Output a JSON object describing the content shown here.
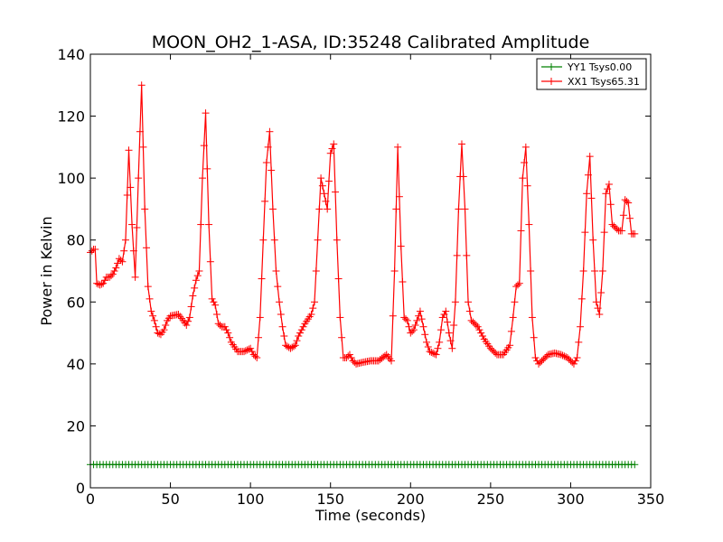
{
  "chart_data": {
    "type": "line",
    "title": "MOON_OH2_1-ASA, ID:35248 Calibrated Amplitude",
    "xlabel": "Time (seconds)",
    "ylabel": "Power in Kelvin",
    "xlim": [
      0,
      350
    ],
    "ylim": [
      0,
      140
    ],
    "xticks": [
      0,
      50,
      100,
      150,
      200,
      250,
      300,
      350
    ],
    "yticks": [
      0,
      20,
      40,
      60,
      80,
      100,
      120,
      140
    ],
    "grid": false,
    "legend_position": "top-right",
    "series": [
      {
        "name": "YY1 Tsys0.00",
        "color": "#008000",
        "marker": "+",
        "x": [
          0,
          340
        ],
        "y": [
          7.5,
          7.5
        ],
        "sample_step": 2
      },
      {
        "name": "XX1 Tsys65.31",
        "color": "#ff0000",
        "marker": "+",
        "points": [
          [
            0,
            76
          ],
          [
            2,
            77
          ],
          [
            3,
            77
          ],
          [
            4,
            66
          ],
          [
            6,
            65.5
          ],
          [
            8,
            66
          ],
          [
            10,
            68
          ],
          [
            12,
            68
          ],
          [
            14,
            69
          ],
          [
            16,
            71
          ],
          [
            18,
            74
          ],
          [
            20,
            73
          ],
          [
            22,
            80
          ],
          [
            24,
            109
          ],
          [
            26,
            85
          ],
          [
            28,
            68
          ],
          [
            30,
            100
          ],
          [
            32,
            130
          ],
          [
            34,
            90
          ],
          [
            36,
            65
          ],
          [
            38,
            57
          ],
          [
            40,
            54
          ],
          [
            42,
            50
          ],
          [
            44,
            49.5
          ],
          [
            46,
            51
          ],
          [
            48,
            54
          ],
          [
            50,
            55.5
          ],
          [
            55,
            56
          ],
          [
            58,
            54
          ],
          [
            60,
            52.5
          ],
          [
            62,
            55
          ],
          [
            64,
            62
          ],
          [
            66,
            67
          ],
          [
            68,
            70
          ],
          [
            70,
            100
          ],
          [
            72,
            121
          ],
          [
            74,
            85
          ],
          [
            76,
            61
          ],
          [
            78,
            59
          ],
          [
            80,
            53
          ],
          [
            82,
            52
          ],
          [
            84,
            52
          ],
          [
            86,
            50
          ],
          [
            88,
            47
          ],
          [
            92,
            44
          ],
          [
            96,
            44
          ],
          [
            100,
            45
          ],
          [
            102,
            43
          ],
          [
            104,
            42
          ],
          [
            106,
            55
          ],
          [
            108,
            80
          ],
          [
            110,
            105
          ],
          [
            112,
            115
          ],
          [
            114,
            90
          ],
          [
            116,
            70
          ],
          [
            118,
            60
          ],
          [
            120,
            52
          ],
          [
            122,
            46
          ],
          [
            125,
            45
          ],
          [
            128,
            46
          ],
          [
            130,
            49
          ],
          [
            134,
            53
          ],
          [
            138,
            56
          ],
          [
            140,
            60
          ],
          [
            142,
            80
          ],
          [
            144,
            100
          ],
          [
            146,
            95
          ],
          [
            148,
            90
          ],
          [
            150,
            108
          ],
          [
            152,
            111
          ],
          [
            154,
            80
          ],
          [
            156,
            55
          ],
          [
            158,
            42
          ],
          [
            160,
            42
          ],
          [
            162,
            43
          ],
          [
            164,
            41
          ],
          [
            166,
            40
          ],
          [
            170,
            40.5
          ],
          [
            175,
            41
          ],
          [
            180,
            41
          ],
          [
            185,
            43
          ],
          [
            188,
            41
          ],
          [
            190,
            70
          ],
          [
            192,
            110
          ],
          [
            194,
            78
          ],
          [
            196,
            55
          ],
          [
            198,
            54
          ],
          [
            200,
            50
          ],
          [
            202,
            51
          ],
          [
            206,
            57
          ],
          [
            208,
            52
          ],
          [
            210,
            47
          ],
          [
            212,
            44
          ],
          [
            216,
            43
          ],
          [
            218,
            47
          ],
          [
            220,
            55
          ],
          [
            222,
            57
          ],
          [
            224,
            50
          ],
          [
            226,
            45
          ],
          [
            228,
            60
          ],
          [
            230,
            90
          ],
          [
            232,
            111
          ],
          [
            234,
            90
          ],
          [
            236,
            60
          ],
          [
            238,
            54
          ],
          [
            242,
            52
          ],
          [
            246,
            48
          ],
          [
            250,
            45
          ],
          [
            254,
            43
          ],
          [
            258,
            43
          ],
          [
            262,
            46
          ],
          [
            264,
            55
          ],
          [
            266,
            65
          ],
          [
            268,
            66
          ],
          [
            270,
            100
          ],
          [
            272,
            110
          ],
          [
            274,
            85
          ],
          [
            276,
            55
          ],
          [
            278,
            42
          ],
          [
            280,
            40
          ],
          [
            282,
            41
          ],
          [
            286,
            43
          ],
          [
            290,
            43.5
          ],
          [
            294,
            43
          ],
          [
            298,
            42
          ],
          [
            300,
            41
          ],
          [
            302,
            40
          ],
          [
            304,
            42
          ],
          [
            306,
            52
          ],
          [
            308,
            70
          ],
          [
            310,
            95
          ],
          [
            312,
            107
          ],
          [
            314,
            80
          ],
          [
            316,
            60
          ],
          [
            318,
            56
          ],
          [
            320,
            70
          ],
          [
            322,
            95
          ],
          [
            324,
            98
          ],
          [
            326,
            85
          ],
          [
            328,
            84
          ],
          [
            330,
            83
          ],
          [
            332,
            83
          ],
          [
            334,
            93
          ],
          [
            336,
            92
          ],
          [
            338,
            82
          ],
          [
            340,
            82
          ]
        ]
      }
    ]
  }
}
